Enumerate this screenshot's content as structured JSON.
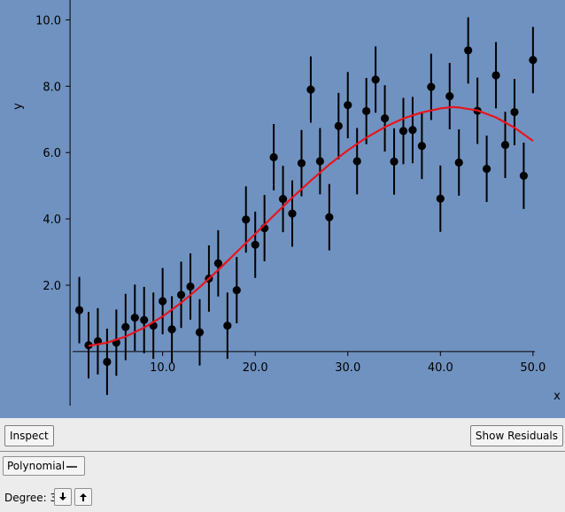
{
  "chart_data": {
    "type": "scatter",
    "title": "",
    "xlabel": "x",
    "ylabel": "y",
    "xlim": [
      -0.2,
      52.5
    ],
    "ylim": [
      -1.9,
      10.6
    ],
    "xticks": [
      10,
      20,
      30,
      40,
      50
    ],
    "xtick_labels": [
      "10.0",
      "20.0",
      "30.0",
      "40.0",
      "50.0"
    ],
    "yticks": [
      2,
      4,
      6,
      8,
      10
    ],
    "ytick_labels": [
      "2.0",
      "4.0",
      "6.0",
      "8.0",
      "10.0"
    ],
    "grid": false,
    "error_bar_half_width": 1.0,
    "points": {
      "x": [
        1,
        2,
        3,
        4,
        5,
        6,
        7,
        8,
        9,
        10,
        11,
        12,
        13,
        14,
        15,
        16,
        17,
        18,
        19,
        20,
        21,
        22,
        23,
        24,
        25,
        26,
        27,
        28,
        29,
        30,
        31,
        32,
        33,
        34,
        35,
        36,
        37,
        38,
        39,
        40,
        41,
        42,
        43,
        44,
        45,
        46,
        47,
        48,
        49,
        50
      ],
      "y": [
        1.25,
        0.19,
        0.31,
        -0.31,
        0.27,
        0.74,
        1.02,
        0.95,
        0.78,
        1.52,
        0.67,
        1.71,
        1.96,
        0.58,
        2.2,
        2.66,
        0.78,
        1.85,
        3.98,
        3.22,
        3.72,
        5.86,
        4.6,
        4.16,
        5.68,
        7.9,
        5.74,
        4.05,
        6.8,
        7.43,
        5.74,
        7.25,
        8.2,
        7.03,
        5.73,
        6.65,
        6.68,
        6.2,
        7.98,
        4.61,
        7.7,
        5.7,
        9.08,
        7.26,
        5.51,
        8.33,
        6.23,
        7.22,
        5.3,
        8.79
      ]
    },
    "fit": {
      "name": "Polynomial",
      "degree": 3,
      "color": "#e8141c",
      "x": [
        2,
        4,
        6,
        8,
        10,
        12,
        14,
        16,
        18,
        20,
        22,
        24,
        26,
        28,
        30,
        32,
        34,
        36,
        38,
        40,
        41.3,
        42,
        44,
        46,
        48,
        50
      ],
      "y": [
        0.17,
        0.27,
        0.45,
        0.72,
        1.06,
        1.47,
        1.94,
        2.46,
        3.0,
        3.55,
        4.1,
        4.64,
        5.15,
        5.64,
        6.07,
        6.45,
        6.77,
        7.03,
        7.21,
        7.33,
        7.37,
        7.36,
        7.27,
        7.06,
        6.75,
        6.35
      ]
    }
  },
  "toolbar": {
    "inspect_label": "Inspect",
    "residuals_label": "Show Residuals"
  },
  "controls": {
    "model_selected": "Polynomial",
    "degree_label": "Degree: 3"
  },
  "icons": {
    "degree_down": "arrow-down-icon",
    "degree_up": "arrow-up-icon"
  }
}
